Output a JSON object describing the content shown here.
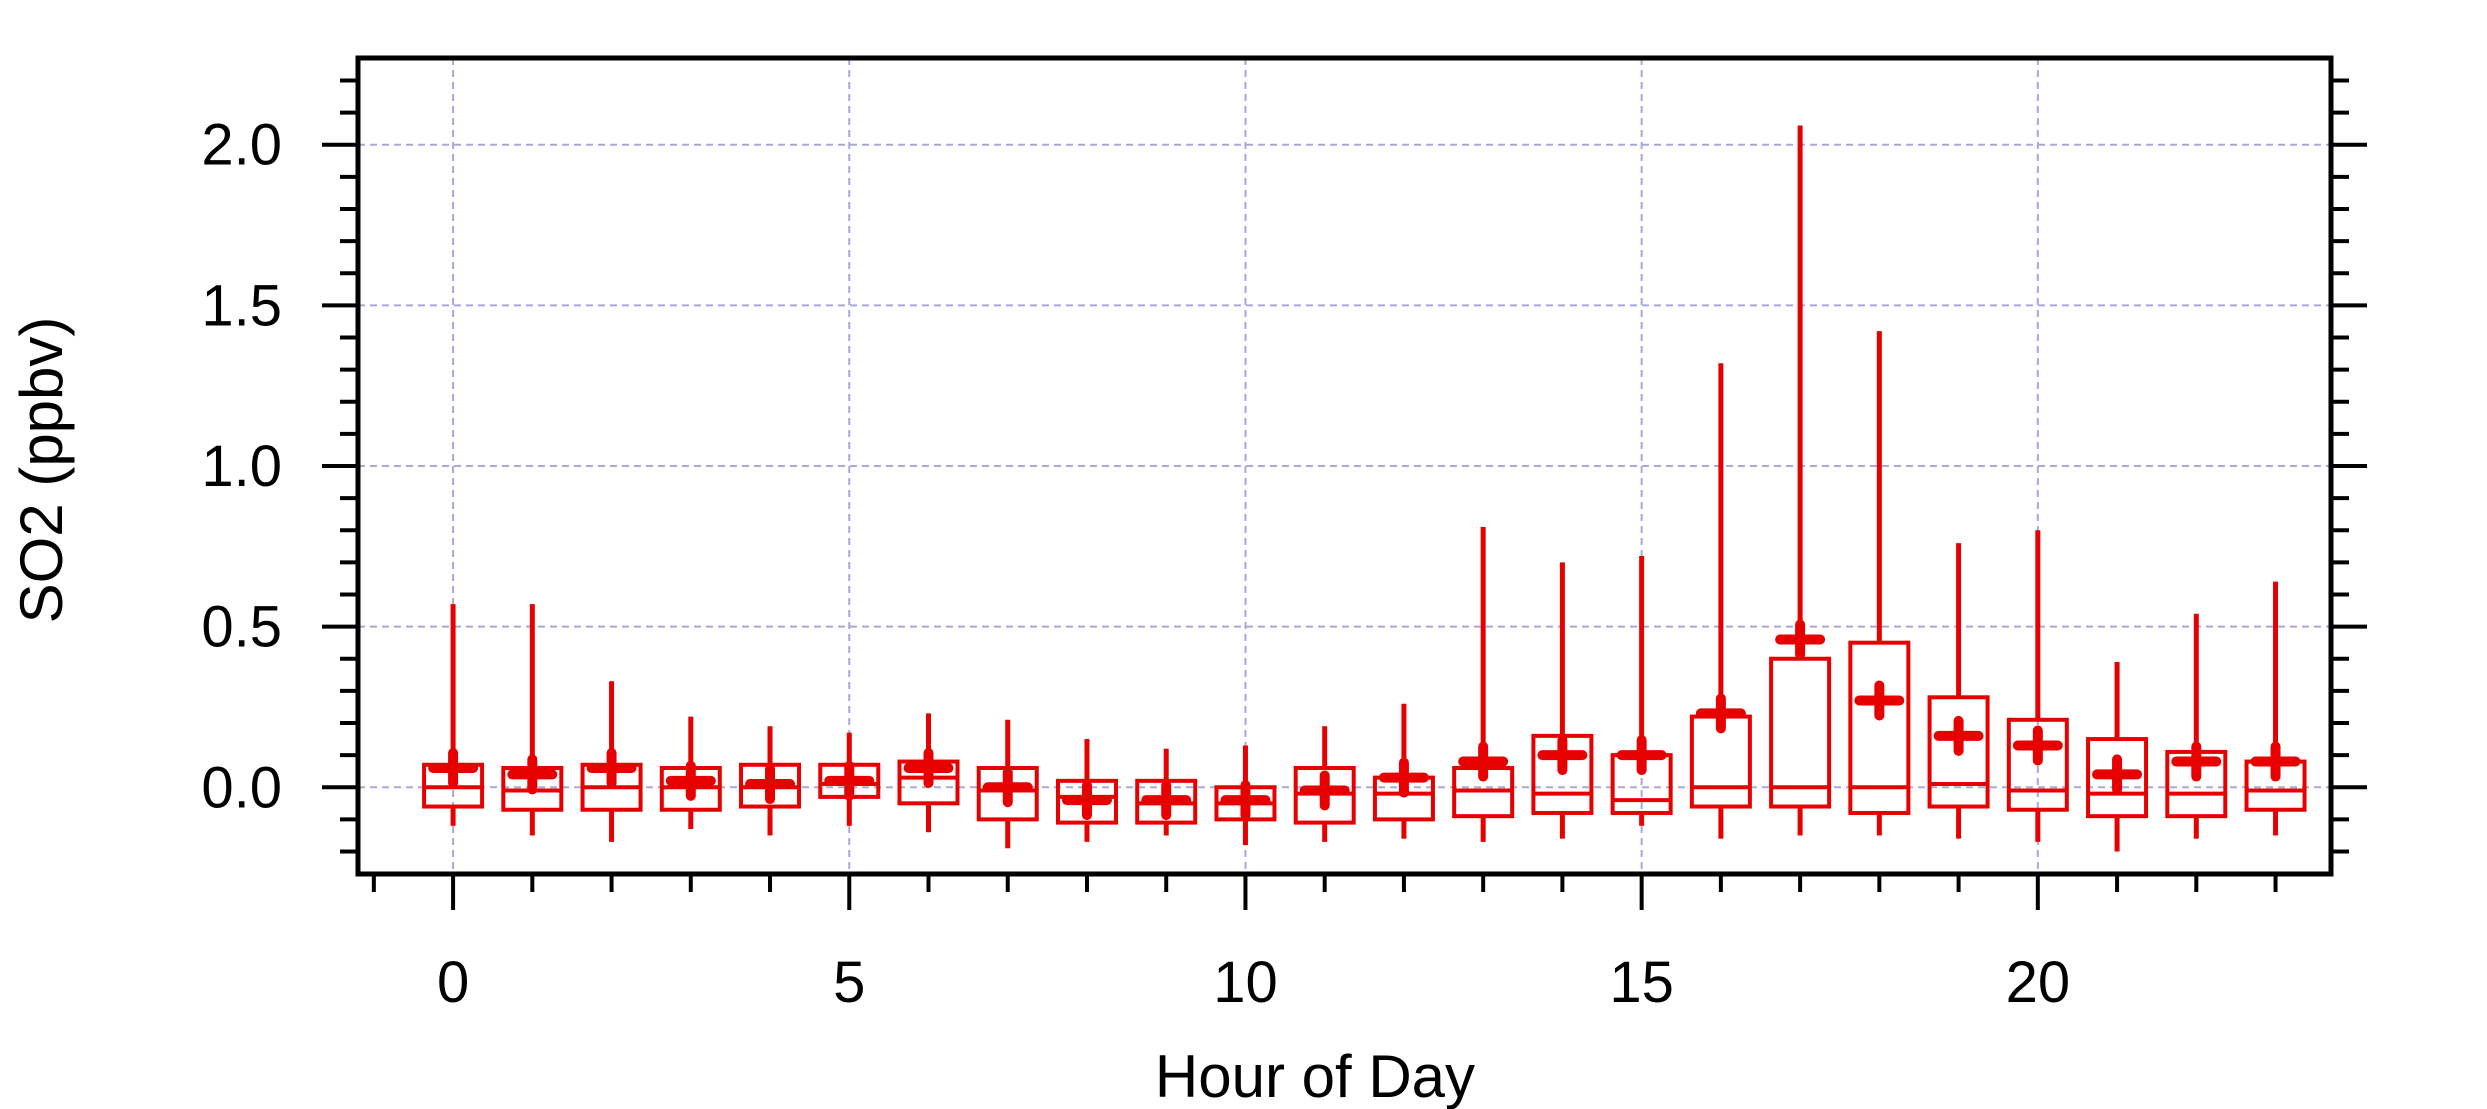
{
  "chart_data": {
    "type": "box",
    "xlabel": "Hour of Day",
    "ylabel": "SO2 (ppbv)",
    "xlim": [
      -1.2,
      23.7
    ],
    "ylim": [
      -0.27,
      2.27
    ],
    "x_ticks": [
      0,
      5,
      10,
      15,
      20
    ],
    "x_tick_labels": [
      "0",
      "5",
      "10",
      "15",
      "20"
    ],
    "y_ticks": [
      0.0,
      0.5,
      1.0,
      1.5,
      2.0
    ],
    "y_tick_labels": [
      "0.0",
      "0.5",
      "1.0",
      "1.5",
      "2.0"
    ],
    "grid": true,
    "colors": {
      "series": "#e60000",
      "grid": "#a8a8dc",
      "axis": "#000000"
    },
    "boxes": [
      {
        "hour": 0,
        "whisker_low": -0.12,
        "q1": -0.06,
        "median": 0.0,
        "q3": 0.07,
        "whisker_high": 0.57,
        "mean": 0.06
      },
      {
        "hour": 1,
        "whisker_low": -0.15,
        "q1": -0.07,
        "median": -0.01,
        "q3": 0.06,
        "whisker_high": 0.57,
        "mean": 0.04
      },
      {
        "hour": 2,
        "whisker_low": -0.17,
        "q1": -0.07,
        "median": 0.0,
        "q3": 0.07,
        "whisker_high": 0.33,
        "mean": 0.06
      },
      {
        "hour": 3,
        "whisker_low": -0.13,
        "q1": -0.07,
        "median": 0.0,
        "q3": 0.06,
        "whisker_high": 0.22,
        "mean": 0.02
      },
      {
        "hour": 4,
        "whisker_low": -0.15,
        "q1": -0.06,
        "median": 0.0,
        "q3": 0.07,
        "whisker_high": 0.19,
        "mean": 0.01
      },
      {
        "hour": 5,
        "whisker_low": -0.12,
        "q1": -0.03,
        "median": 0.01,
        "q3": 0.07,
        "whisker_high": 0.17,
        "mean": 0.02
      },
      {
        "hour": 6,
        "whisker_low": -0.14,
        "q1": -0.05,
        "median": 0.03,
        "q3": 0.08,
        "whisker_high": 0.23,
        "mean": 0.06
      },
      {
        "hour": 7,
        "whisker_low": -0.19,
        "q1": -0.1,
        "median": -0.01,
        "q3": 0.06,
        "whisker_high": 0.21,
        "mean": 0.0
      },
      {
        "hour": 8,
        "whisker_low": -0.17,
        "q1": -0.11,
        "median": -0.03,
        "q3": 0.02,
        "whisker_high": 0.15,
        "mean": -0.04
      },
      {
        "hour": 9,
        "whisker_low": -0.15,
        "q1": -0.11,
        "median": -0.05,
        "q3": 0.02,
        "whisker_high": 0.12,
        "mean": -0.04
      },
      {
        "hour": 10,
        "whisker_low": -0.18,
        "q1": -0.1,
        "median": -0.05,
        "q3": 0.0,
        "whisker_high": 0.13,
        "mean": -0.04
      },
      {
        "hour": 11,
        "whisker_low": -0.17,
        "q1": -0.11,
        "median": -0.02,
        "q3": 0.06,
        "whisker_high": 0.19,
        "mean": -0.01
      },
      {
        "hour": 12,
        "whisker_low": -0.16,
        "q1": -0.1,
        "median": -0.02,
        "q3": 0.03,
        "whisker_high": 0.26,
        "mean": 0.03
      },
      {
        "hour": 13,
        "whisker_low": -0.17,
        "q1": -0.09,
        "median": -0.01,
        "q3": 0.06,
        "whisker_high": 0.81,
        "mean": 0.08
      },
      {
        "hour": 14,
        "whisker_low": -0.16,
        "q1": -0.08,
        "median": -0.02,
        "q3": 0.16,
        "whisker_high": 0.7,
        "mean": 0.1
      },
      {
        "hour": 15,
        "whisker_low": -0.12,
        "q1": -0.08,
        "median": -0.04,
        "q3": 0.1,
        "whisker_high": 0.72,
        "mean": 0.1
      },
      {
        "hour": 16,
        "whisker_low": -0.16,
        "q1": -0.06,
        "median": 0.0,
        "q3": 0.22,
        "whisker_high": 1.32,
        "mean": 0.23
      },
      {
        "hour": 17,
        "whisker_low": -0.15,
        "q1": -0.06,
        "median": 0.0,
        "q3": 0.4,
        "whisker_high": 2.06,
        "mean": 0.46
      },
      {
        "hour": 18,
        "whisker_low": -0.15,
        "q1": -0.08,
        "median": 0.0,
        "q3": 0.45,
        "whisker_high": 1.42,
        "mean": 0.27
      },
      {
        "hour": 19,
        "whisker_low": -0.16,
        "q1": -0.06,
        "median": 0.01,
        "q3": 0.28,
        "whisker_high": 0.76,
        "mean": 0.16
      },
      {
        "hour": 20,
        "whisker_low": -0.17,
        "q1": -0.07,
        "median": -0.01,
        "q3": 0.21,
        "whisker_high": 0.8,
        "mean": 0.13
      },
      {
        "hour": 21,
        "whisker_low": -0.2,
        "q1": -0.09,
        "median": -0.02,
        "q3": 0.15,
        "whisker_high": 0.39,
        "mean": 0.04
      },
      {
        "hour": 22,
        "whisker_low": -0.16,
        "q1": -0.09,
        "median": -0.02,
        "q3": 0.11,
        "whisker_high": 0.54,
        "mean": 0.08
      },
      {
        "hour": 23,
        "whisker_low": -0.15,
        "q1": -0.07,
        "median": -0.01,
        "q3": 0.08,
        "whisker_high": 0.64,
        "mean": 0.08
      }
    ]
  }
}
